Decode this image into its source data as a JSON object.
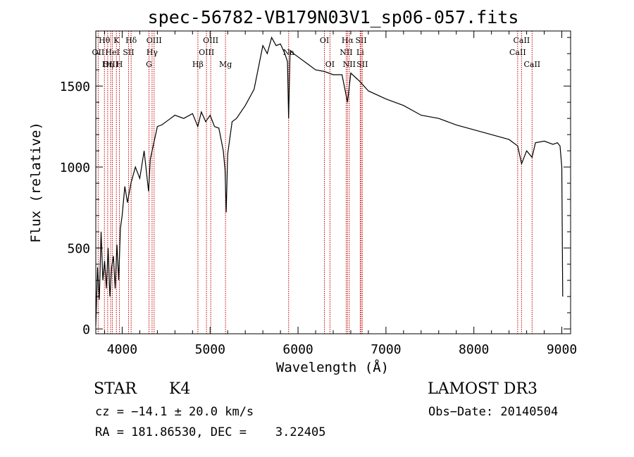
{
  "chart_data": {
    "type": "line",
    "title": "spec-56782-VB179N03V1_sp06-057.fits",
    "xlabel": "Wavelength (Å)",
    "ylabel": "Flux (relative)",
    "xlim": [
      3700,
      9100
    ],
    "ylim": [
      -30,
      1840
    ],
    "x_ticks": [
      4000,
      5000,
      6000,
      7000,
      8000,
      9000
    ],
    "x_tick_labels": [
      "4000",
      "5000",
      "6000",
      "7000",
      "8000",
      "9000"
    ],
    "y_ticks": [
      0,
      500,
      1000,
      1500
    ],
    "y_tick_labels": [
      "0",
      "500",
      "1000",
      "1500"
    ],
    "grid": false,
    "series": [
      {
        "name": "flux",
        "x": [
          3700,
          3720,
          3740,
          3760,
          3780,
          3800,
          3820,
          3840,
          3860,
          3880,
          3900,
          3920,
          3940,
          3960,
          3980,
          4000,
          4030,
          4060,
          4100,
          4150,
          4200,
          4250,
          4300,
          4320,
          4340,
          4360,
          4400,
          4450,
          4500,
          4550,
          4600,
          4700,
          4800,
          4860,
          4900,
          4950,
          5000,
          5050,
          5100,
          5150,
          5170,
          5183,
          5200,
          5250,
          5300,
          5400,
          5500,
          5600,
          5650,
          5700,
          5750,
          5800,
          5850,
          5880,
          5893,
          5910,
          5950,
          6000,
          6100,
          6200,
          6300,
          6400,
          6500,
          6563,
          6600,
          6700,
          6800,
          7000,
          7200,
          7400,
          7600,
          7800,
          8000,
          8200,
          8400,
          8498,
          8542,
          8600,
          8662,
          8700,
          8800,
          8900,
          8950,
          8980,
          9000,
          9010
        ],
        "values": [
          20,
          380,
          180,
          600,
          300,
          420,
          250,
          500,
          200,
          380,
          450,
          250,
          520,
          300,
          620,
          700,
          880,
          780,
          900,
          1000,
          930,
          1100,
          850,
          1050,
          1100,
          1150,
          1250,
          1260,
          1280,
          1300,
          1320,
          1300,
          1330,
          1250,
          1340,
          1280,
          1320,
          1250,
          1240,
          1100,
          980,
          720,
          1080,
          1280,
          1300,
          1380,
          1480,
          1750,
          1700,
          1800,
          1750,
          1760,
          1700,
          1650,
          1300,
          1720,
          1700,
          1680,
          1640,
          1600,
          1590,
          1570,
          1570,
          1400,
          1580,
          1530,
          1470,
          1420,
          1380,
          1320,
          1300,
          1260,
          1230,
          1200,
          1170,
          1130,
          1020,
          1100,
          1060,
          1150,
          1160,
          1140,
          1150,
          1130,
          1000,
          200
        ]
      }
    ],
    "lines": [
      {
        "name": "Hθ",
        "x": 3798,
        "label": "Hθ",
        "row": 0
      },
      {
        "name": "OII",
        "x": 3727,
        "label": "OII",
        "row": 1
      },
      {
        "name": "OIII",
        "x": 3869,
        "label": "OIII",
        "row": 2
      },
      {
        "name": "Hη",
        "x": 3835,
        "label": "Hη",
        "row": 2
      },
      {
        "name": "HeI",
        "x": 3889,
        "label": "HeI",
        "row": 1
      },
      {
        "name": "K",
        "x": 3934,
        "label": "K",
        "row": 0
      },
      {
        "name": "H",
        "x": 3969,
        "label": "H",
        "row": 2
      },
      {
        "name": "SII",
        "x": 4072,
        "label": "SII",
        "row": 1
      },
      {
        "name": "Hδ",
        "x": 4102,
        "label": "Hδ",
        "row": 0
      },
      {
        "name": "OIII",
        "x": 4363,
        "label": "OIII",
        "row": 0
      },
      {
        "name": "Hγ",
        "x": 4340,
        "label": "Hγ",
        "row": 1
      },
      {
        "name": "G",
        "x": 4305,
        "label": "G",
        "row": 2
      },
      {
        "name": "Hβ",
        "x": 4861,
        "label": "Hβ",
        "row": 2
      },
      {
        "name": "OIII",
        "x": 5007,
        "label": "OIII",
        "row": 0
      },
      {
        "name": "OIII",
        "x": 4959,
        "label": "OIII",
        "row": 1
      },
      {
        "name": "Mg",
        "x": 5175,
        "label": "Mg",
        "row": 2
      },
      {
        "name": "Na",
        "x": 5893,
        "label": "Na",
        "row": 1
      },
      {
        "name": "OI",
        "x": 6300,
        "label": "OI",
        "row": 0
      },
      {
        "name": "OI",
        "x": 6363,
        "label": "OI",
        "row": 2
      },
      {
        "name": "Hα",
        "x": 6563,
        "label": "Hα",
        "row": 0
      },
      {
        "name": "NII",
        "x": 6548,
        "label": "NII",
        "row": 1
      },
      {
        "name": "NII",
        "x": 6583,
        "label": "NII",
        "row": 2
      },
      {
        "name": "SII",
        "x": 6717,
        "label": "SII",
        "row": 0
      },
      {
        "name": "Li",
        "x": 6707,
        "label": "Li",
        "row": 1
      },
      {
        "name": "SII",
        "x": 6731,
        "label": "SII",
        "row": 2
      },
      {
        "name": "CaII",
        "x": 8542,
        "label": "CaII",
        "row": 0
      },
      {
        "name": "CaII",
        "x": 8498,
        "label": "CaII",
        "row": 1
      },
      {
        "name": "CaII",
        "x": 8662,
        "label": "CaII",
        "row": 2
      }
    ]
  },
  "info": {
    "class": "STAR",
    "subclass": "K4",
    "survey": "LAMOST DR3",
    "cz": "cz = −14.1 ± 20.0 km/s",
    "obs_date": "Obs−Date: 20140504",
    "coords": "RA = 181.86530, DEC =    3.22405"
  }
}
